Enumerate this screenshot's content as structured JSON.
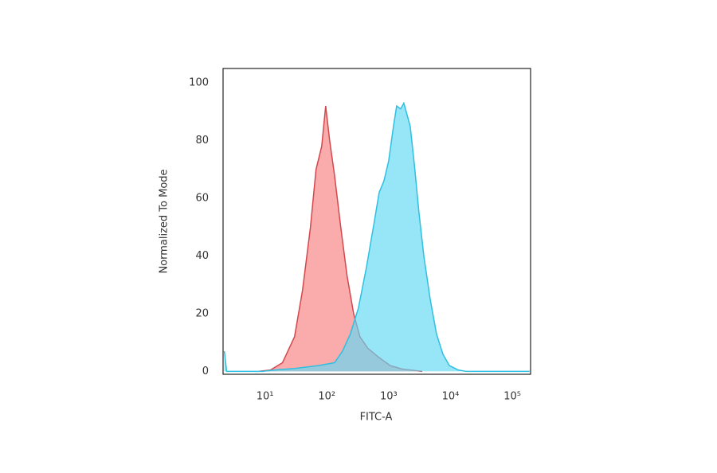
{
  "chart_data": {
    "type": "area",
    "xscale": "log",
    "xlabel": "FITC-A",
    "ylabel": "Normalized To Mode",
    "xlim": [
      2.1,
      197000
    ],
    "ylim": [
      -1,
      105
    ],
    "xticks": [
      {
        "value": 10,
        "label": "10¹"
      },
      {
        "value": 100,
        "label": "10²"
      },
      {
        "value": 1000,
        "label": "10³"
      },
      {
        "value": 10000,
        "label": "10⁴"
      },
      {
        "value": 100000,
        "label": "10⁵"
      }
    ],
    "yticks": [
      0,
      20,
      40,
      60,
      80,
      100
    ],
    "series": [
      {
        "color": "#f77f7f",
        "line_color": "#d2484c",
        "x": [
          7.9,
          12.3,
          19.2,
          30,
          40.4,
          54.3,
          67,
          82.5,
          95.7,
          111,
          133,
          168,
          213,
          271,
          343,
          462,
          680,
          1060,
          1660,
          2590,
          3480
        ],
        "values": [
          0,
          0.5,
          3,
          12,
          28,
          50,
          70,
          78,
          92,
          80,
          68,
          50,
          33,
          20,
          12,
          8,
          5,
          2,
          0.8,
          0.3,
          0
        ]
      },
      {
        "color": "#5fd8f5",
        "line_color": "#2fbfe0",
        "x": [
          2.2,
          2.4,
          9.1,
          14.3,
          30,
          73,
          133,
          179,
          240,
          324,
          436,
          587,
          700,
          837,
          1000,
          1195,
          1345,
          1563,
          1760,
          1980,
          2230,
          2590,
          3090,
          3700,
          4690,
          5940,
          7530,
          9570,
          13300,
          17900,
          190000
        ],
        "values": [
          7,
          0,
          0,
          0.5,
          1,
          2,
          3,
          7,
          13,
          22,
          36,
          52,
          62,
          66,
          73,
          85,
          92,
          91,
          93,
          89,
          85,
          72,
          55,
          40,
          25,
          13,
          6,
          2,
          0.5,
          0,
          0
        ]
      }
    ]
  }
}
